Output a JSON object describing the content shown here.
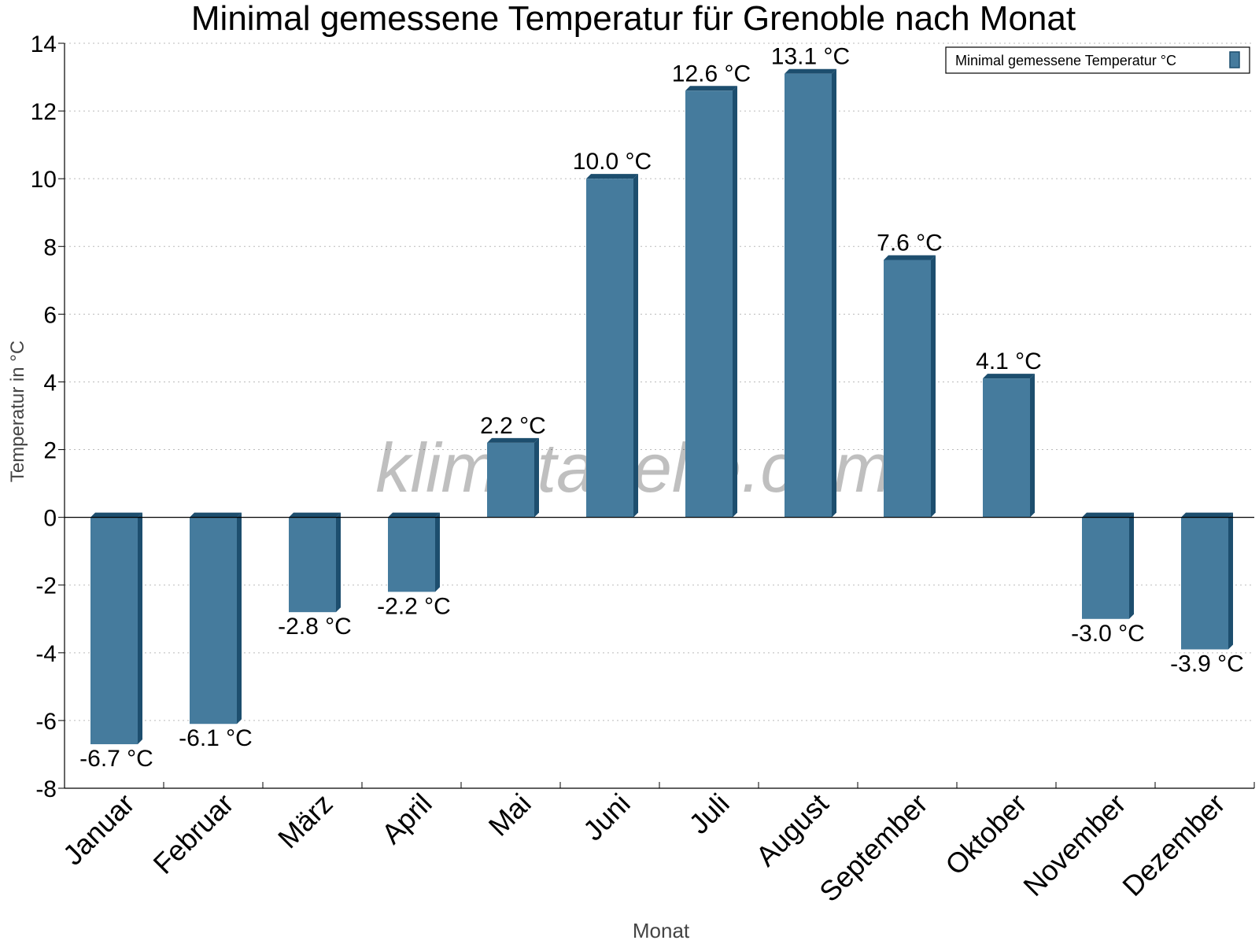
{
  "chart_data": {
    "type": "bar",
    "title": "Minimal gemessene Temperatur für Grenoble nach Monat",
    "xlabel": "Monat",
    "ylabel": "Temperatur in °C",
    "categories": [
      "Januar",
      "Februar",
      "März",
      "April",
      "Mai",
      "Juni",
      "Juli",
      "August",
      "September",
      "Oktober",
      "November",
      "Dezember"
    ],
    "series": [
      {
        "name": "Minimal gemessene Temperatur °C",
        "values": [
          -6.7,
          -6.1,
          -2.8,
          -2.2,
          2.2,
          10.0,
          12.6,
          13.1,
          7.6,
          4.1,
          -3.0,
          -3.9
        ],
        "data_labels": [
          "-6.7 °C",
          "-6.1 °C",
          "-2.8 °C",
          "-2.2 °C",
          "2.2 °C",
          "10.0 °C",
          "12.6 °C",
          "13.1 °C",
          "7.6 °C",
          "4.1 °C",
          "-3.0 °C",
          "-3.9 °C"
        ],
        "color": "#457b9d",
        "edge_color": "#1d4e6e"
      }
    ],
    "ylim": [
      -8,
      14
    ],
    "yticks": [
      -8,
      -6,
      -4,
      -2,
      0,
      2,
      4,
      6,
      8,
      10,
      12,
      14
    ],
    "grid": true,
    "legend": "top-right",
    "watermark": "klimatabelle.com"
  }
}
